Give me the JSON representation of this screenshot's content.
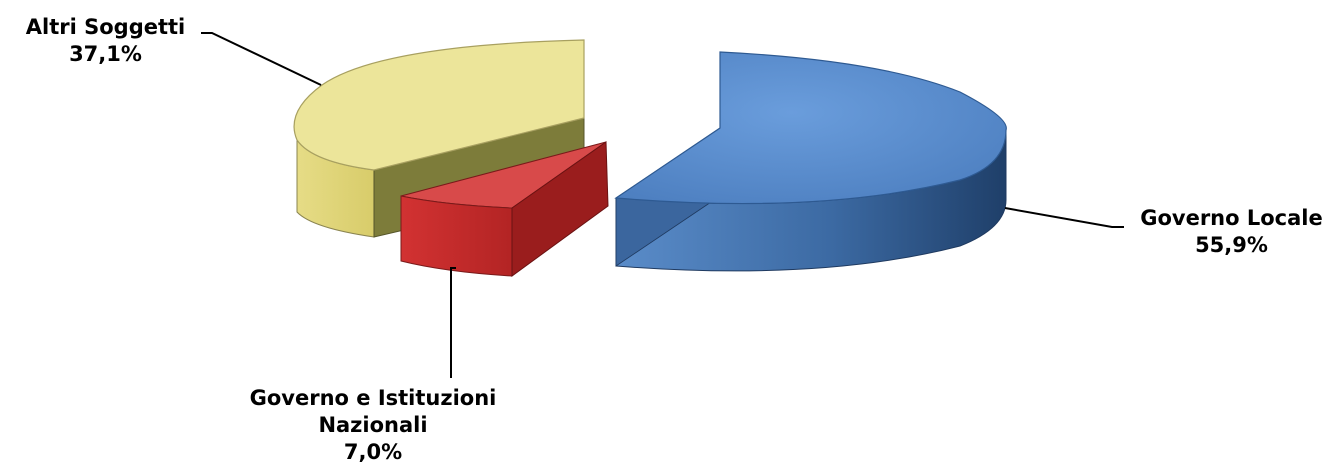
{
  "chart_data": {
    "type": "pie",
    "title": "",
    "slices": [
      {
        "label": "Governo Locale",
        "value": 55.9,
        "display": "55,9%",
        "color": "#5b8fd0"
      },
      {
        "label": "Governo e Istituzioni Nazionali",
        "value": 7.0,
        "display": "7,0%",
        "color": "#cf3030"
      },
      {
        "label": "Altri Soggetti",
        "value": 37.1,
        "display": "37,1%",
        "color": "#ece59a"
      }
    ],
    "style": "3d-exploded",
    "legend": "none"
  },
  "labels": {
    "locale_name": "Governo Locale",
    "locale_pct": "55,9%",
    "nazionali_line1": "Governo e Istituzioni",
    "nazionali_line2": "Nazionali",
    "nazionali_pct": "7,0%",
    "altri_name": "Altri Soggetti",
    "altri_pct": "37,1%"
  }
}
